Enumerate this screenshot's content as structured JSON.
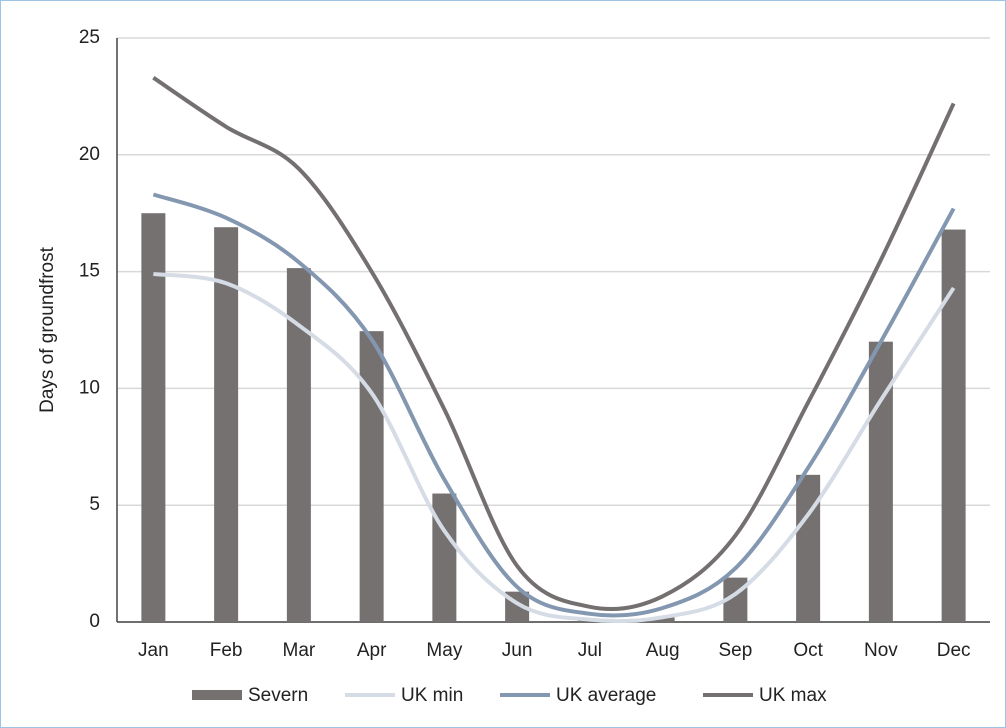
{
  "chart_data": {
    "type": "bar",
    "y_label": "Days of groundfrost",
    "categories": [
      "Jan",
      "Feb",
      "Mar",
      "Apr",
      "May",
      "Jun",
      "Jul",
      "Aug",
      "Sep",
      "Oct",
      "Nov",
      "Dec"
    ],
    "series": [
      {
        "name": "Severn",
        "type": "bar",
        "color": "#767171",
        "values": [
          17.5,
          16.9,
          15.15,
          12.45,
          5.5,
          1.3,
          0.1,
          0.2,
          1.9,
          6.3,
          12.0,
          16.8
        ]
      },
      {
        "name": "UK min",
        "type": "line",
        "color": "#d6dce5",
        "values": [
          14.9,
          14.5,
          12.7,
          9.8,
          3.9,
          0.8,
          0.1,
          0.2,
          1.2,
          4.6,
          9.5,
          14.3
        ]
      },
      {
        "name": "UK average",
        "type": "line",
        "color": "#8497b0",
        "values": [
          18.3,
          17.3,
          15.4,
          12.1,
          6.1,
          1.5,
          0.35,
          0.6,
          2.3,
          6.6,
          12.0,
          17.7
        ]
      },
      {
        "name": "UK max",
        "type": "line",
        "color": "#757070",
        "values": [
          23.3,
          21.2,
          19.4,
          15.0,
          9.1,
          2.4,
          0.65,
          1.1,
          3.7,
          9.4,
          15.5,
          22.2
        ]
      }
    ],
    "ylim": [
      0,
      25
    ],
    "yticks": [
      0,
      5,
      10,
      15,
      20,
      25
    ],
    "grid": true,
    "legend": "bottom"
  }
}
